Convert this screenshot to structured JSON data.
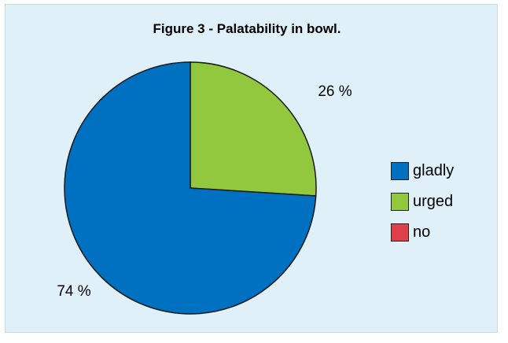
{
  "chart_data": {
    "type": "pie",
    "title": "Figure 3 - Palatability in bowl.",
    "categories": [
      "gladly",
      "urged",
      "no"
    ],
    "values": [
      74,
      26,
      0
    ],
    "labels": [
      "74 %",
      "26 %",
      ""
    ],
    "colors": [
      "#0070c0",
      "#92c83e",
      "#e0404a"
    ],
    "legend_position": "right"
  }
}
